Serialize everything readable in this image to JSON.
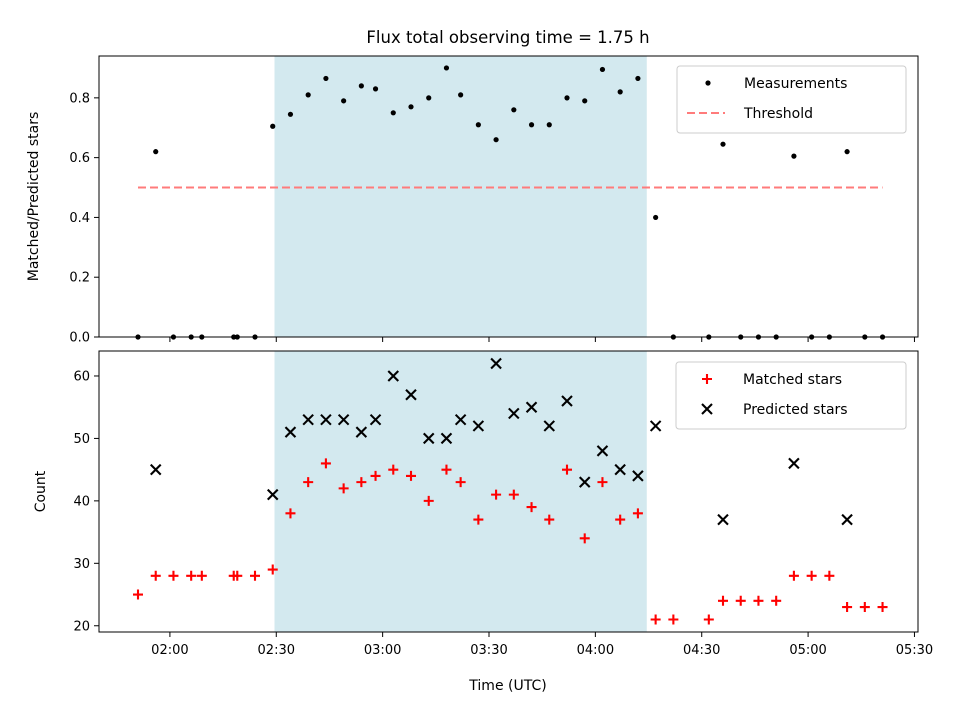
{
  "chart_data": {
    "title": "Flux total observing time = 1.75 h",
    "xlabel": "Time (UTC)",
    "x_unit": "minutes since 00:00 UTC",
    "x_ticks": [
      {
        "value": 120,
        "label": "02:00"
      },
      {
        "value": 150,
        "label": "02:30"
      },
      {
        "value": 180,
        "label": "03:00"
      },
      {
        "value": 210,
        "label": "03:30"
      },
      {
        "value": 240,
        "label": "04:00"
      },
      {
        "value": 270,
        "label": "04:30"
      },
      {
        "value": 300,
        "label": "05:00"
      },
      {
        "value": 330,
        "label": "05:30"
      }
    ],
    "xlim": [
      100,
      331
    ],
    "shaded_interval": {
      "start": 149.5,
      "end": 254.5,
      "color": "#d3e9ef"
    },
    "panels": [
      {
        "type": "scatter",
        "ylabel": "Matched/Predicted stars",
        "ylim": [
          0,
          0.94
        ],
        "y_ticks": [
          "0.0",
          "0.2",
          "0.4",
          "0.6",
          "0.8"
        ],
        "y_tick_values": [
          0,
          0.2,
          0.4,
          0.6,
          0.8
        ],
        "legend_position": "top-right",
        "series": [
          {
            "name": "Measurements",
            "marker": "dot",
            "color": "#000000",
            "points": [
              [
                111,
                0.0
              ],
              [
                116,
                0.62
              ],
              [
                121,
                0.0
              ],
              [
                126,
                0.0
              ],
              [
                129,
                0.0
              ],
              [
                138,
                0.0
              ],
              [
                139,
                0.0
              ],
              [
                144,
                0.0
              ],
              [
                149,
                0.705
              ],
              [
                154,
                0.745
              ],
              [
                159,
                0.81
              ],
              [
                164,
                0.865
              ],
              [
                169,
                0.79
              ],
              [
                174,
                0.84
              ],
              [
                178,
                0.83
              ],
              [
                183,
                0.75
              ],
              [
                188,
                0.77
              ],
              [
                193,
                0.8
              ],
              [
                198,
                0.9
              ],
              [
                202,
                0.81
              ],
              [
                207,
                0.71
              ],
              [
                212,
                0.66
              ],
              [
                217,
                0.76
              ],
              [
                222,
                0.71
              ],
              [
                227,
                0.71
              ],
              [
                232,
                0.8
              ],
              [
                237,
                0.79
              ],
              [
                242,
                0.895
              ],
              [
                247,
                0.82
              ],
              [
                252,
                0.865
              ],
              [
                257,
                0.4
              ],
              [
                262,
                0.0
              ],
              [
                272,
                0.0
              ],
              [
                276,
                0.645
              ],
              [
                281,
                0.0
              ],
              [
                286,
                0.0
              ],
              [
                291,
                0.0
              ],
              [
                296,
                0.605
              ],
              [
                301,
                0.0
              ],
              [
                306,
                0.0
              ],
              [
                311,
                0.62
              ],
              [
                316,
                0.0
              ],
              [
                321,
                0.0
              ]
            ]
          },
          {
            "name": "Threshold",
            "marker": "dashed-line",
            "color": "#ff7b7b",
            "points": [
              [
                111,
                0.5
              ],
              [
                321,
                0.5
              ]
            ]
          }
        ]
      },
      {
        "type": "scatter",
        "ylabel": "Count",
        "ylim": [
          19,
          64
        ],
        "y_ticks": [
          "20",
          "30",
          "40",
          "50",
          "60"
        ],
        "y_tick_values": [
          20,
          30,
          40,
          50,
          60
        ],
        "legend_position": "top-right",
        "series": [
          {
            "name": "Matched stars",
            "marker": "plus",
            "color": "#ff0000",
            "points": [
              [
                111,
                25
              ],
              [
                116,
                28
              ],
              [
                121,
                28
              ],
              [
                126,
                28
              ],
              [
                129,
                28
              ],
              [
                138,
                28
              ],
              [
                139,
                28
              ],
              [
                144,
                28
              ],
              [
                149,
                29
              ],
              [
                154,
                38
              ],
              [
                159,
                43
              ],
              [
                164,
                46
              ],
              [
                169,
                42
              ],
              [
                174,
                43
              ],
              [
                178,
                44
              ],
              [
                183,
                45
              ],
              [
                188,
                44
              ],
              [
                193,
                40
              ],
              [
                198,
                45
              ],
              [
                202,
                43
              ],
              [
                207,
                37
              ],
              [
                212,
                41
              ],
              [
                217,
                41
              ],
              [
                222,
                39
              ],
              [
                227,
                37
              ],
              [
                232,
                45
              ],
              [
                237,
                34
              ],
              [
                242,
                43
              ],
              [
                247,
                37
              ],
              [
                252,
                38
              ],
              [
                257,
                21
              ],
              [
                262,
                21
              ],
              [
                272,
                21
              ],
              [
                276,
                24
              ],
              [
                281,
                24
              ],
              [
                286,
                24
              ],
              [
                291,
                24
              ],
              [
                296,
                28
              ],
              [
                301,
                28
              ],
              [
                306,
                28
              ],
              [
                311,
                23
              ],
              [
                316,
                23
              ],
              [
                321,
                23
              ]
            ]
          },
          {
            "name": "Predicted stars",
            "marker": "x",
            "color": "#000000",
            "points": [
              [
                116,
                45
              ],
              [
                149,
                41
              ],
              [
                154,
                51
              ],
              [
                159,
                53
              ],
              [
                164,
                53
              ],
              [
                169,
                53
              ],
              [
                174,
                51
              ],
              [
                178,
                53
              ],
              [
                183,
                60
              ],
              [
                188,
                57
              ],
              [
                193,
                50
              ],
              [
                198,
                50
              ],
              [
                202,
                53
              ],
              [
                207,
                52
              ],
              [
                212,
                62
              ],
              [
                217,
                54
              ],
              [
                222,
                55
              ],
              [
                227,
                52
              ],
              [
                232,
                56
              ],
              [
                237,
                43
              ],
              [
                242,
                48
              ],
              [
                247,
                45
              ],
              [
                252,
                44
              ],
              [
                257,
                52
              ],
              [
                276,
                37
              ],
              [
                296,
                46
              ],
              [
                311,
                37
              ]
            ]
          }
        ]
      }
    ]
  }
}
